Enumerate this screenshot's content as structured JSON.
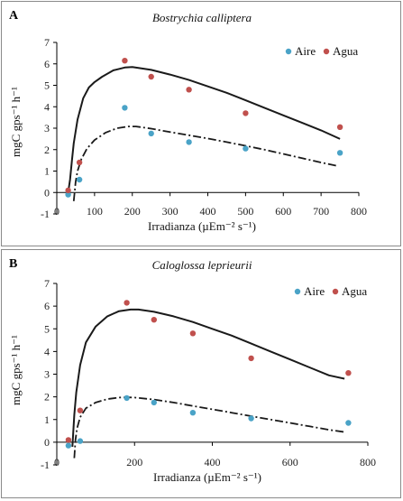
{
  "chart_data": [
    {
      "type": "scatter",
      "panel_letter": "A",
      "title": "Bostrychia calliptera",
      "xlabel": "Irradianza (µEm⁻² s⁻¹)",
      "ylabel": "mgC gps⁻¹ h⁻¹",
      "xlim": [
        0,
        800
      ],
      "ylim": [
        -1,
        7
      ],
      "x_ticks": [
        "0",
        "100",
        "200",
        "300",
        "400",
        "500",
        "600",
        "700",
        "800"
      ],
      "y_ticks": [
        "-1",
        "0",
        "1",
        "2",
        "3",
        "4",
        "5",
        "6",
        "7"
      ],
      "legend_position": "top-right",
      "series": [
        {
          "name": "Aire",
          "color": "#4aa3c7",
          "x": [
            30,
            60,
            180,
            250,
            350,
            500,
            750
          ],
          "y": [
            -0.1,
            0.6,
            3.95,
            2.75,
            2.35,
            2.05,
            1.85
          ]
        },
        {
          "name": "Agua",
          "color": "#c0504d",
          "x": [
            30,
            60,
            180,
            250,
            350,
            500,
            750
          ],
          "y": [
            0.1,
            1.4,
            6.15,
            5.4,
            4.8,
            3.7,
            3.05
          ]
        }
      ],
      "fits": [
        {
          "style": "solid",
          "x": [
            30,
            35,
            40,
            45,
            55,
            70,
            85,
            100,
            120,
            150,
            180,
            200,
            250,
            300,
            350,
            400,
            450,
            500,
            550,
            600,
            650,
            700,
            750
          ],
          "y": [
            0.0,
            0.6,
            1.5,
            2.3,
            3.4,
            4.4,
            4.9,
            5.15,
            5.4,
            5.7,
            5.83,
            5.85,
            5.72,
            5.5,
            5.25,
            4.95,
            4.65,
            4.3,
            3.95,
            3.6,
            3.25,
            2.9,
            2.5
          ]
        },
        {
          "style": "dash-dot",
          "x": [
            45,
            50,
            55,
            65,
            80,
            100,
            130,
            160,
            190,
            210,
            250,
            300,
            350,
            400,
            450,
            500,
            550,
            600,
            650,
            700,
            740
          ],
          "y": [
            -0.4,
            0.5,
            1.0,
            1.55,
            2.05,
            2.45,
            2.8,
            3.0,
            3.08,
            3.08,
            2.98,
            2.82,
            2.67,
            2.52,
            2.35,
            2.18,
            2.0,
            1.8,
            1.6,
            1.4,
            1.25
          ]
        }
      ]
    },
    {
      "type": "scatter",
      "panel_letter": "B",
      "title": "Caloglossa leprieurii",
      "xlabel": "Irradianza (µEm⁻² s⁻¹)",
      "ylabel": "mgC gps⁻¹ h⁻¹",
      "xlim": [
        0,
        800
      ],
      "ylim": [
        -1,
        7
      ],
      "x_ticks": [
        "0",
        "200",
        "400",
        "600",
        "800"
      ],
      "y_ticks": [
        "-1",
        "0",
        "1",
        "2",
        "3",
        "4",
        "5",
        "6",
        "7"
      ],
      "legend_position": "top-right",
      "series": [
        {
          "name": "Aire",
          "color": "#4aa3c7",
          "x": [
            30,
            60,
            180,
            250,
            350,
            500,
            750
          ],
          "y": [
            -0.15,
            0.05,
            1.95,
            1.75,
            1.3,
            1.05,
            0.85
          ]
        },
        {
          "name": "Agua",
          "color": "#c0504d",
          "x": [
            30,
            60,
            180,
            250,
            350,
            500,
            750
          ],
          "y": [
            0.1,
            1.4,
            6.15,
            5.4,
            4.8,
            3.7,
            3.05
          ]
        }
      ],
      "fits": [
        {
          "style": "solid",
          "x": [
            40,
            45,
            50,
            60,
            75,
            100,
            130,
            160,
            190,
            210,
            250,
            300,
            350,
            400,
            450,
            500,
            550,
            600,
            650,
            700,
            740
          ],
          "y": [
            -0.2,
            1.2,
            2.2,
            3.4,
            4.4,
            5.1,
            5.55,
            5.78,
            5.85,
            5.85,
            5.75,
            5.55,
            5.3,
            5.0,
            4.7,
            4.35,
            4.0,
            3.65,
            3.3,
            2.95,
            2.8
          ]
        },
        {
          "style": "dash-dot",
          "x": [
            45,
            48,
            52,
            60,
            75,
            100,
            130,
            160,
            180,
            200,
            250,
            300,
            350,
            400,
            450,
            500,
            550,
            600,
            650,
            700,
            740
          ],
          "y": [
            -0.7,
            0.1,
            0.6,
            1.1,
            1.5,
            1.75,
            1.9,
            1.97,
            1.98,
            1.97,
            1.88,
            1.75,
            1.6,
            1.45,
            1.3,
            1.15,
            1.0,
            0.85,
            0.7,
            0.55,
            0.45
          ]
        }
      ]
    }
  ]
}
